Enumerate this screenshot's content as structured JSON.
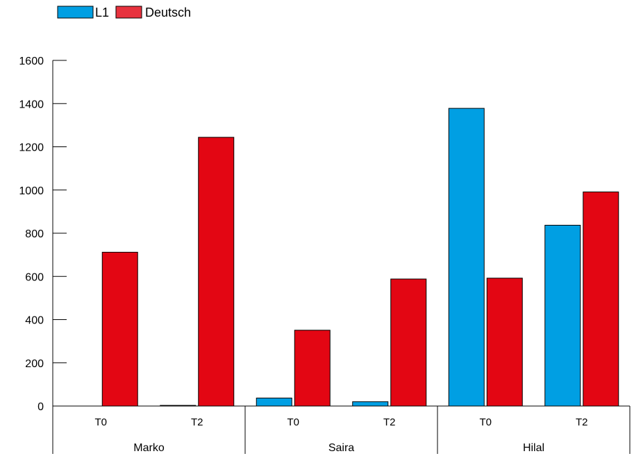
{
  "chart_data": {
    "type": "bar",
    "legend_position": "top-left",
    "grid": false,
    "ylim": [
      0,
      1600
    ],
    "yticks": [
      0,
      200,
      400,
      600,
      800,
      1000,
      1200,
      1400,
      1600
    ],
    "groups": [
      {
        "name": "Marko",
        "categories": [
          "T0",
          "T2"
        ]
      },
      {
        "name": "Saira",
        "categories": [
          "T0",
          "T2"
        ]
      },
      {
        "name": "Hilal",
        "categories": [
          "T0",
          "T2"
        ]
      }
    ],
    "series": [
      {
        "name": "L1",
        "color": "#009fe3",
        "values": [
          0,
          3,
          37,
          20,
          1378,
          837
        ]
      },
      {
        "name": "Deutsch",
        "color": "#e30613",
        "values": [
          712,
          1244,
          351,
          588,
          592,
          991
        ]
      }
    ]
  }
}
